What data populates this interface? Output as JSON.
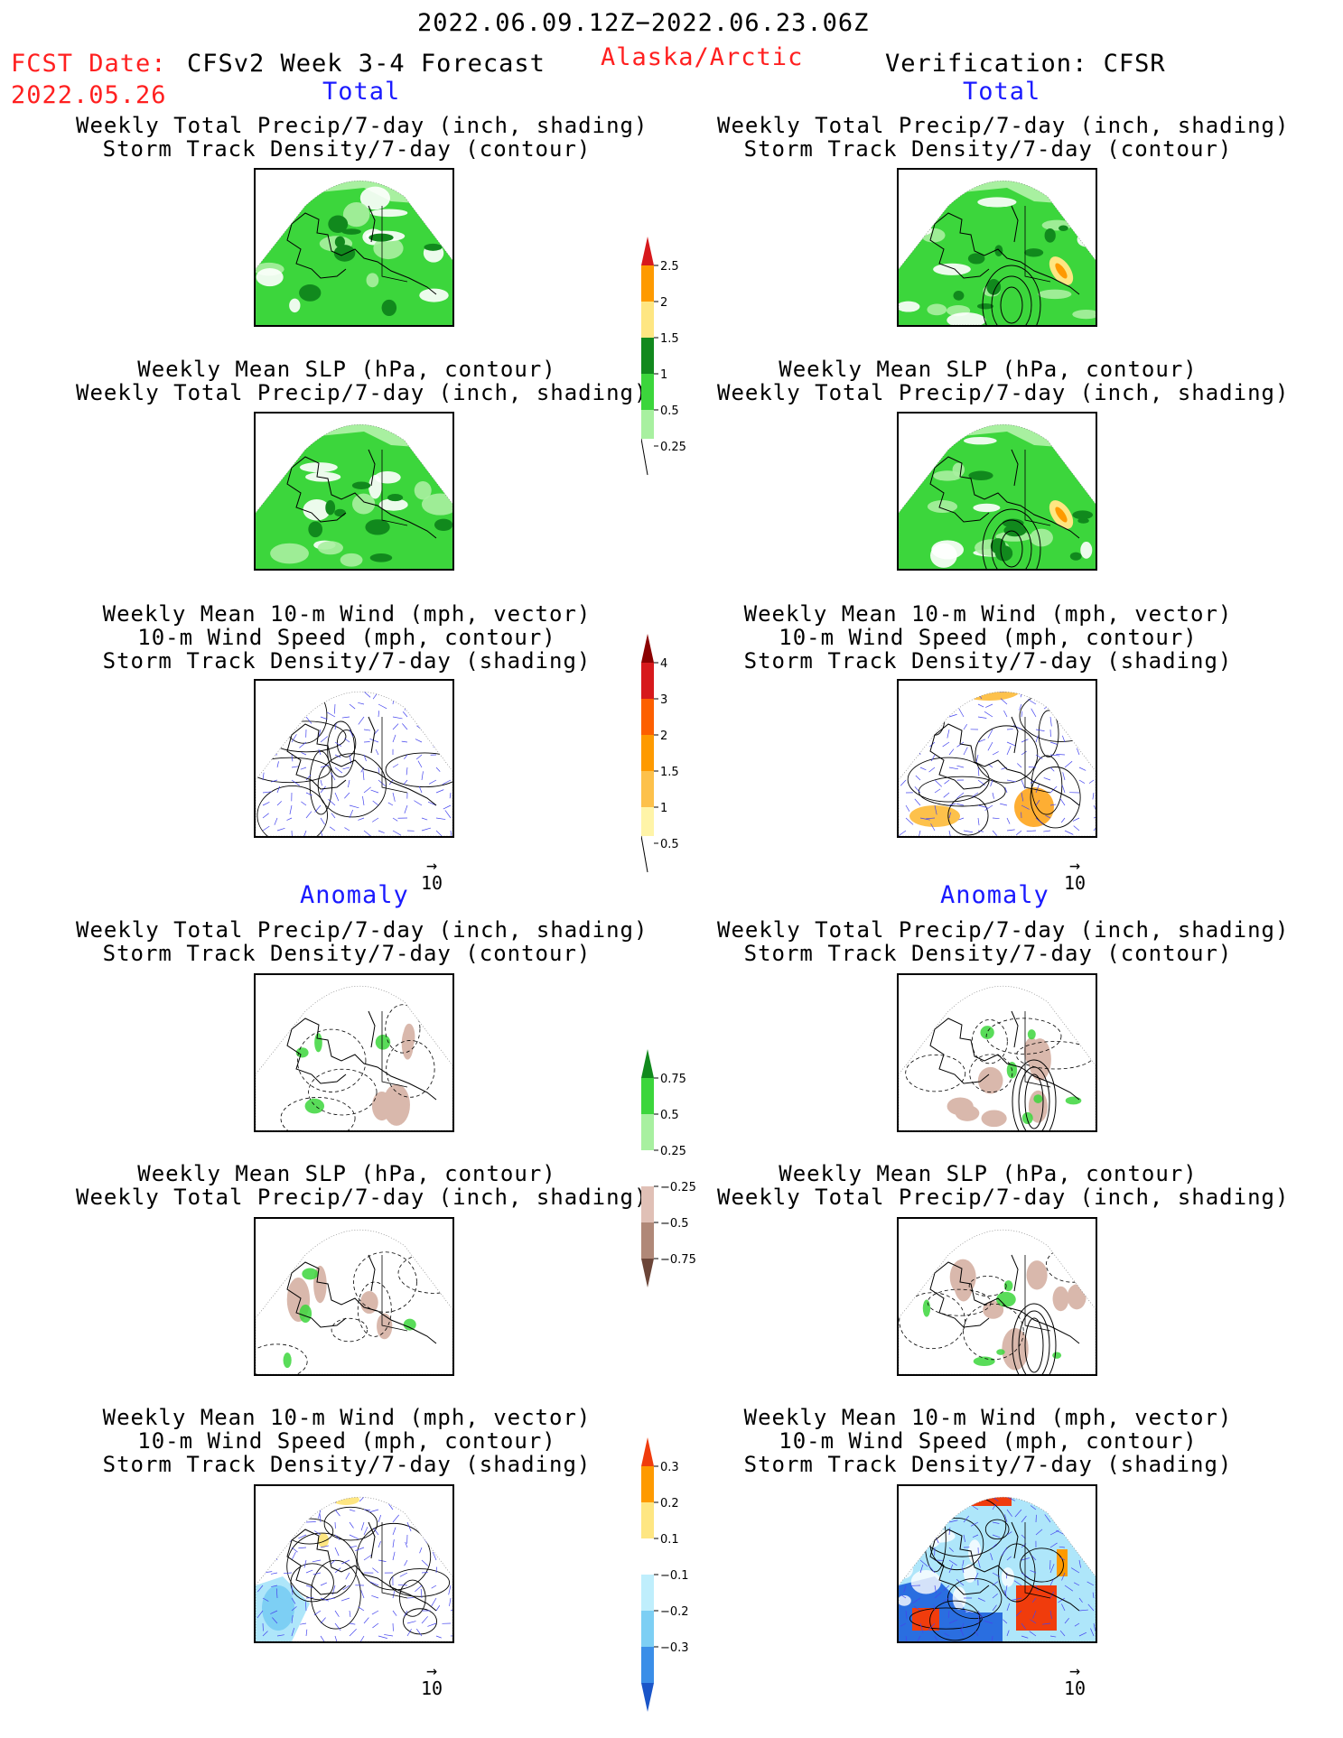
{
  "header": {
    "period": "2022.06.09.12Z−2022.06.23.06Z",
    "fcst_label": "FCST Date:",
    "fcst_date": "2022.05.26",
    "model": "CFSv2 Week 3-4 Forecast",
    "region": "Alaska/Arctic",
    "verification": "Verification: CFSR"
  },
  "columns": {
    "left_total": "Total",
    "right_total": "Total",
    "left_anomaly": "Anomaly",
    "right_anomaly": "Anomaly"
  },
  "titles": {
    "precip_storm": [
      "Weekly Total Precip/7-day (inch, shading)",
      "Storm Track Density/7-day (contour)"
    ],
    "slp_precip": [
      "Weekly Mean SLP (hPa, contour)",
      "Weekly Total Precip/7-day (inch, shading)"
    ],
    "wind_storm": [
      "Weekly Mean 10-m Wind (mph, vector)",
      "10-m Wind Speed (mph, contour)",
      "Storm Track Density/7-day (shading)"
    ]
  },
  "vector_scale": "10",
  "colorbars": {
    "precip_total": {
      "labels": [
        "2.5",
        "2",
        "1.5",
        "1",
        "0.5",
        "0.25"
      ],
      "colors": [
        "#d7191c",
        "#fe9a00",
        "#fee682",
        "#11891d",
        "#3cd63c",
        "#a8f0a0"
      ]
    },
    "storm_total": {
      "labels": [
        "4",
        "3",
        "2",
        "1.5",
        "1",
        "0.5"
      ],
      "colors": [
        "#8b0000",
        "#d7191c",
        "#fd5f00",
        "#fe9a00",
        "#fdc14b",
        "#fff4a8"
      ]
    },
    "precip_anom": {
      "labels": [
        "0.75",
        "0.5",
        "0.25",
        "−0.25",
        "−0.5",
        "−0.75"
      ],
      "colors": [
        "#11891d",
        "#3cd63c",
        "#a8f0a0",
        "#ffffff",
        "#e0c0b6",
        "#b08878",
        "#6b4538"
      ]
    },
    "storm_anom": {
      "labels": [
        "0.3",
        "0.2",
        "0.1",
        "−0.1",
        "−0.2",
        "−0.3"
      ],
      "colors": [
        "#f03c0c",
        "#fe9a00",
        "#fee682",
        "#ffffff",
        "#bfeefc",
        "#7dcff4",
        "#3a8ee8",
        "#1a55c8"
      ]
    }
  },
  "panel_colors": {
    "land_green": "#3cd63c",
    "light_green": "#a8f0a0",
    "dark_green": "#11891d",
    "brown": "#d9b8ac",
    "wind_blue": "#4444ee",
    "red": "#f03c0c",
    "blue": "#2a6ee0",
    "cyan": "#aee6fa"
  }
}
